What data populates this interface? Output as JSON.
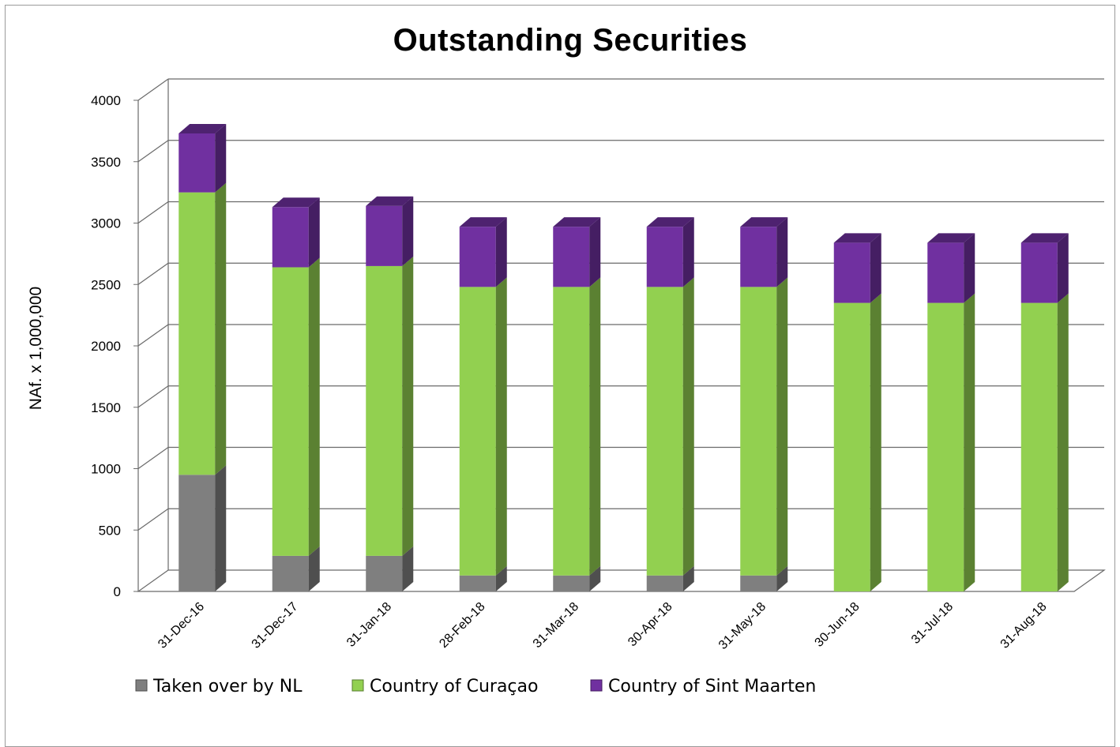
{
  "chart_data": {
    "type": "bar",
    "stacked": true,
    "style": "3d",
    "title": "Outstanding  Securities",
    "xlabel": "",
    "ylabel": "NAf. x 1,000,000",
    "ylim": [
      0,
      4000
    ],
    "yticks": [
      "0",
      "500",
      "1000",
      "1500",
      "2000",
      "2500",
      "3000",
      "3500",
      "4000"
    ],
    "ytick_values": [
      0,
      500,
      1000,
      1500,
      2000,
      2500,
      3000,
      3500,
      4000
    ],
    "grid": true,
    "legend_position": "bottom",
    "categories": [
      "31-Dec-16",
      "31-Dec-17",
      "31-Jan-18",
      "28-Feb-18",
      "31-Mar-18",
      "30-Apr-18",
      "31-May-18",
      "30-Jun-18",
      "31-Jul-18",
      "31-Aug-18"
    ],
    "series": [
      {
        "name": "Taken over by NL",
        "color": "#7f7f7f",
        "values": [
          950,
          290,
          290,
          130,
          130,
          130,
          130,
          0,
          0,
          0
        ]
      },
      {
        "name": "Country of Curaçao",
        "color": "#92d050",
        "values": [
          2300,
          2350,
          2360,
          2350,
          2350,
          2350,
          2350,
          2350,
          2350,
          2350
        ]
      },
      {
        "name": "Country of Sint Maarten",
        "color": "#7030a0",
        "values": [
          480,
          490,
          490,
          490,
          490,
          490,
          490,
          490,
          490,
          490
        ]
      }
    ]
  }
}
